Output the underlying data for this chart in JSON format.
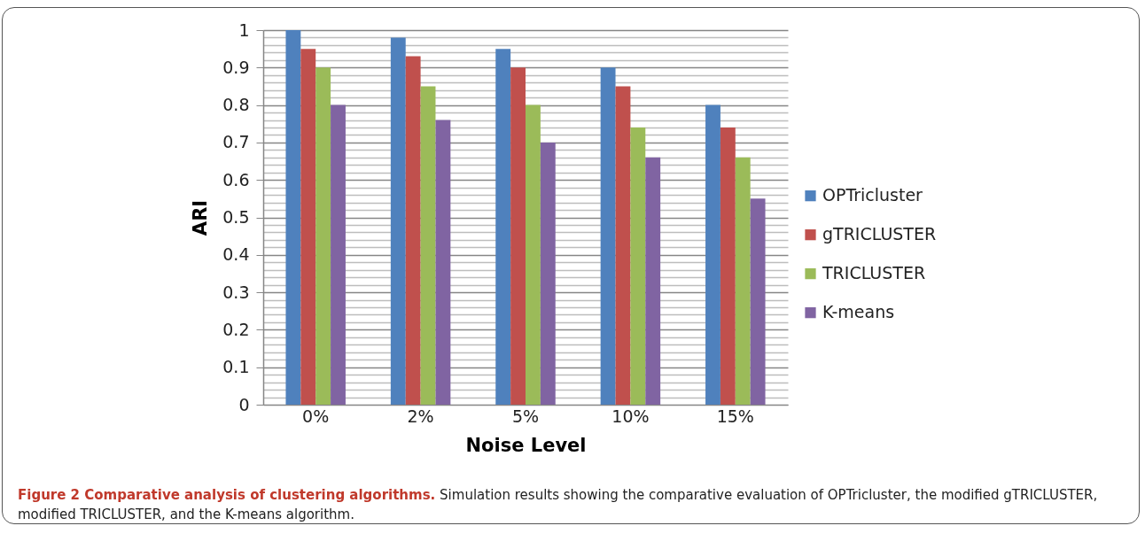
{
  "chart_data": {
    "type": "bar",
    "title": "Figure 2 Comparative analysis of clustering algorithms.",
    "annotations": [
      "Simulation results showing the comparative evaluation of OPTricluster, the modified gTRICLUSTER, modified TRICLUSTER, and the K-means algorithm."
    ],
    "xlabel": "Noise Level",
    "ylabel": "ARI",
    "categories": [
      "0%",
      "2%",
      "5%",
      "10%",
      "15%"
    ],
    "series": [
      {
        "name": "OPTricluster",
        "color": "#4f81bd",
        "values": [
          1,
          0.98,
          0.95,
          0.9,
          0.8
        ]
      },
      {
        "name": "gTRICLUSTER",
        "color": "#c0504d",
        "values": [
          0.95,
          0.93,
          0.9,
          0.85,
          0.74
        ]
      },
      {
        "name": "TRICLUSTER",
        "color": "#9bbb59",
        "values": [
          0.9,
          0.85,
          0.8,
          0.74,
          0.66
        ]
      },
      {
        "name": "K-means",
        "color": "#8064a2",
        "values": [
          0.8,
          0.76,
          0.7,
          0.66,
          0.55
        ]
      }
    ],
    "ylim": [
      0,
      1
    ],
    "yticks": [
      0,
      {
        "value": 0.02,
        "label": null
      },
      {
        "value": 0.04,
        "label": null
      },
      {
        "value": 0.06,
        "label": null
      },
      {
        "value": 0.08,
        "label": null
      },
      0.1,
      {
        "value": 0.12,
        "label": null
      },
      {
        "value": 0.14,
        "label": null
      },
      {
        "value": 0.16,
        "label": null
      },
      {
        "value": 0.18,
        "label": null
      },
      0.2,
      {
        "value": 0.22,
        "label": null
      },
      {
        "value": 0.24,
        "label": null
      },
      {
        "value": 0.26,
        "label": null
      },
      {
        "value": 0.28,
        "label": null
      },
      0.3,
      {
        "value": 0.32,
        "label": null
      },
      {
        "value": 0.34,
        "label": null
      },
      {
        "value": 0.36,
        "label": null
      },
      {
        "value": 0.38,
        "label": null
      },
      0.4,
      {
        "value": 0.42,
        "label": null
      },
      {
        "value": 0.44,
        "label": null
      },
      {
        "value": 0.46,
        "label": null
      },
      {
        "value": 0.48,
        "label": null
      },
      0.5,
      {
        "value": 0.52,
        "label": null
      },
      {
        "value": 0.54,
        "label": null
      },
      {
        "value": 0.56,
        "label": null
      },
      {
        "value": 0.58,
        "label": null
      },
      0.6,
      {
        "value": 0.62,
        "label": null
      },
      {
        "value": 0.64,
        "label": null
      },
      {
        "value": 0.66,
        "label": null
      },
      {
        "value": 0.68,
        "label": null
      },
      0.7,
      {
        "value": 0.72,
        "label": null
      },
      {
        "value": 0.74,
        "label": null
      },
      {
        "value": 0.76,
        "label": null
      },
      {
        "value": 0.78,
        "label": null
      },
      0.8,
      {
        "value": 0.82,
        "label": null
      },
      {
        "value": 0.84,
        "label": null
      },
      {
        "value": 0.86,
        "label": null
      },
      {
        "value": 0.88,
        "label": null
      },
      0.9,
      {
        "value": 0.92,
        "label": null
      },
      {
        "value": 0.94,
        "label": null
      },
      {
        "value": 0.96,
        "label": null
      },
      {
        "value": 0.98,
        "label": null
      },
      1
    ],
    "grid": true,
    "legend": "right"
  }
}
